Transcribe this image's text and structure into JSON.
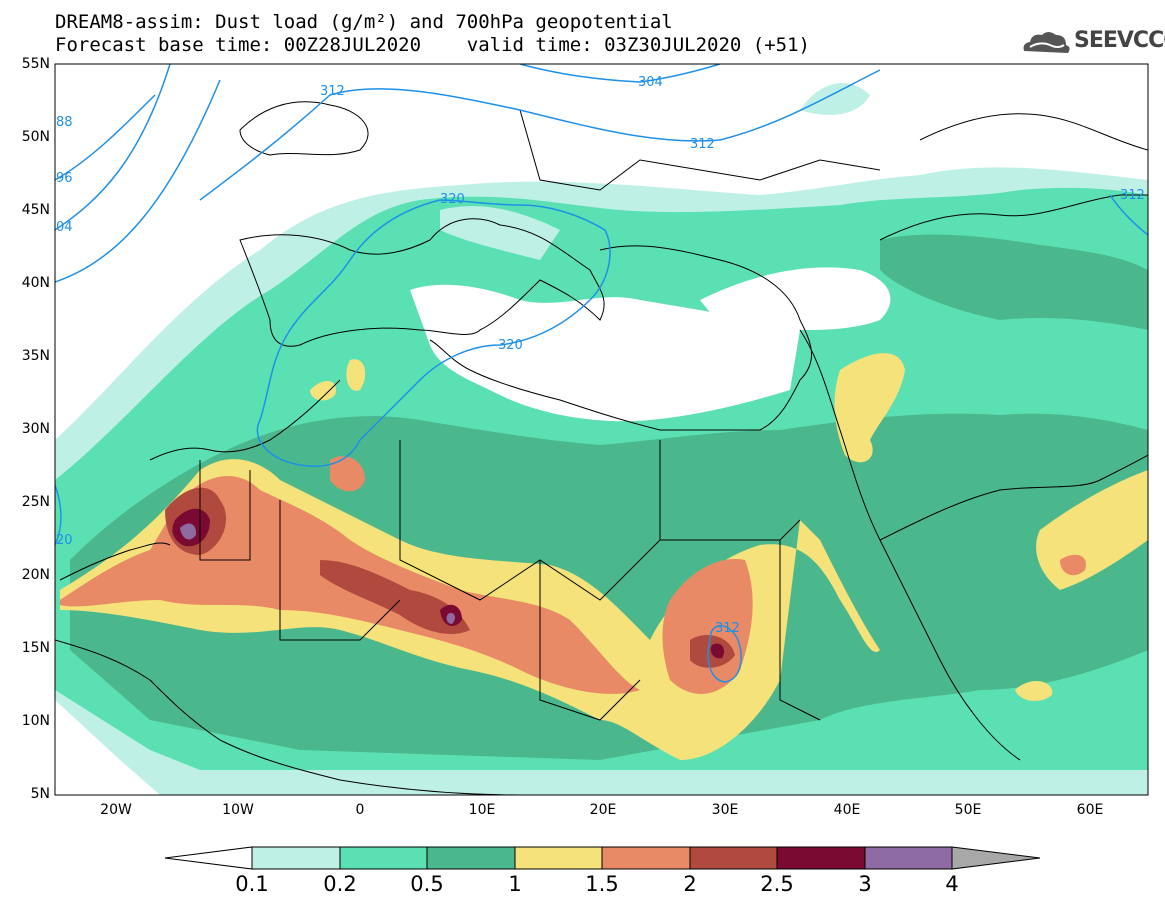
{
  "header": {
    "title_line1": "DREAM8-assim: Dust load (g/m²) and 700hPa geopotential",
    "title_line2": "Forecast base time: 00Z28JUL2020    valid time: 03Z30JUL2020 (+51)",
    "logo_text": "SEEVCCC"
  },
  "axes": {
    "lat_labels": [
      "55N",
      "50N",
      "45N",
      "40N",
      "35N",
      "30N",
      "25N",
      "20N",
      "15N",
      "10N",
      "5N"
    ],
    "lon_labels": [
      "20W",
      "10W",
      "0",
      "10E",
      "20E",
      "30E",
      "40E",
      "50E",
      "60E"
    ]
  },
  "contour_labels": [
    {
      "text": "312",
      "id": "c-312-a"
    },
    {
      "text": "304",
      "id": "c-304"
    },
    {
      "text": "312",
      "id": "c-312-b"
    },
    {
      "text": "320",
      "id": "c-320-a"
    },
    {
      "text": "320",
      "id": "c-320-b"
    },
    {
      "text": "312",
      "id": "c-312-c"
    },
    {
      "text": "312",
      "id": "c-312-d"
    },
    {
      "text": "88",
      "id": "c-88"
    },
    {
      "text": "96",
      "id": "c-96"
    },
    {
      "text": "04",
      "id": "c-04"
    },
    {
      "text": "20",
      "id": "c-20"
    }
  ],
  "colorbar": {
    "labels": [
      "0.1",
      "0.2",
      "0.5",
      "1",
      "1.5",
      "2",
      "2.5",
      "3",
      "4"
    ],
    "colors": [
      "#ffffff",
      "#bff0e6",
      "#5be0b4",
      "#4ab88c",
      "#f5e27a",
      "#e98a66",
      "#b04a3e",
      "#7a0a32",
      "#8e6aa2",
      "#a8a8a8"
    ]
  },
  "colors": {
    "geopotential_line": "#1e90e8",
    "coast": "#000000"
  }
}
